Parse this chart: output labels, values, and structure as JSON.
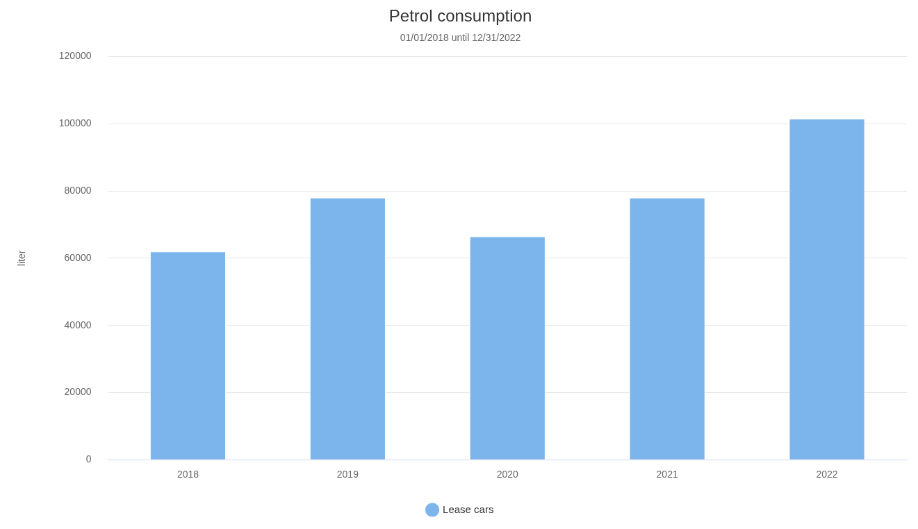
{
  "chart_data": {
    "type": "bar",
    "title": "Petrol consumption",
    "subtitle": "01/01/2018 until 12/31/2022",
    "ylabel": "liter",
    "categories": [
      "2018",
      "2019",
      "2020",
      "2021",
      "2022"
    ],
    "series": [
      {
        "name": "Lease cars",
        "color": "#7cb5ec",
        "values": [
          62000,
          78000,
          66500,
          78000,
          101500
        ]
      }
    ],
    "ylim": [
      0,
      120000
    ],
    "yticks": [
      0,
      20000,
      40000,
      60000,
      80000,
      100000,
      120000
    ],
    "grid": "y",
    "legend": "bottom"
  }
}
